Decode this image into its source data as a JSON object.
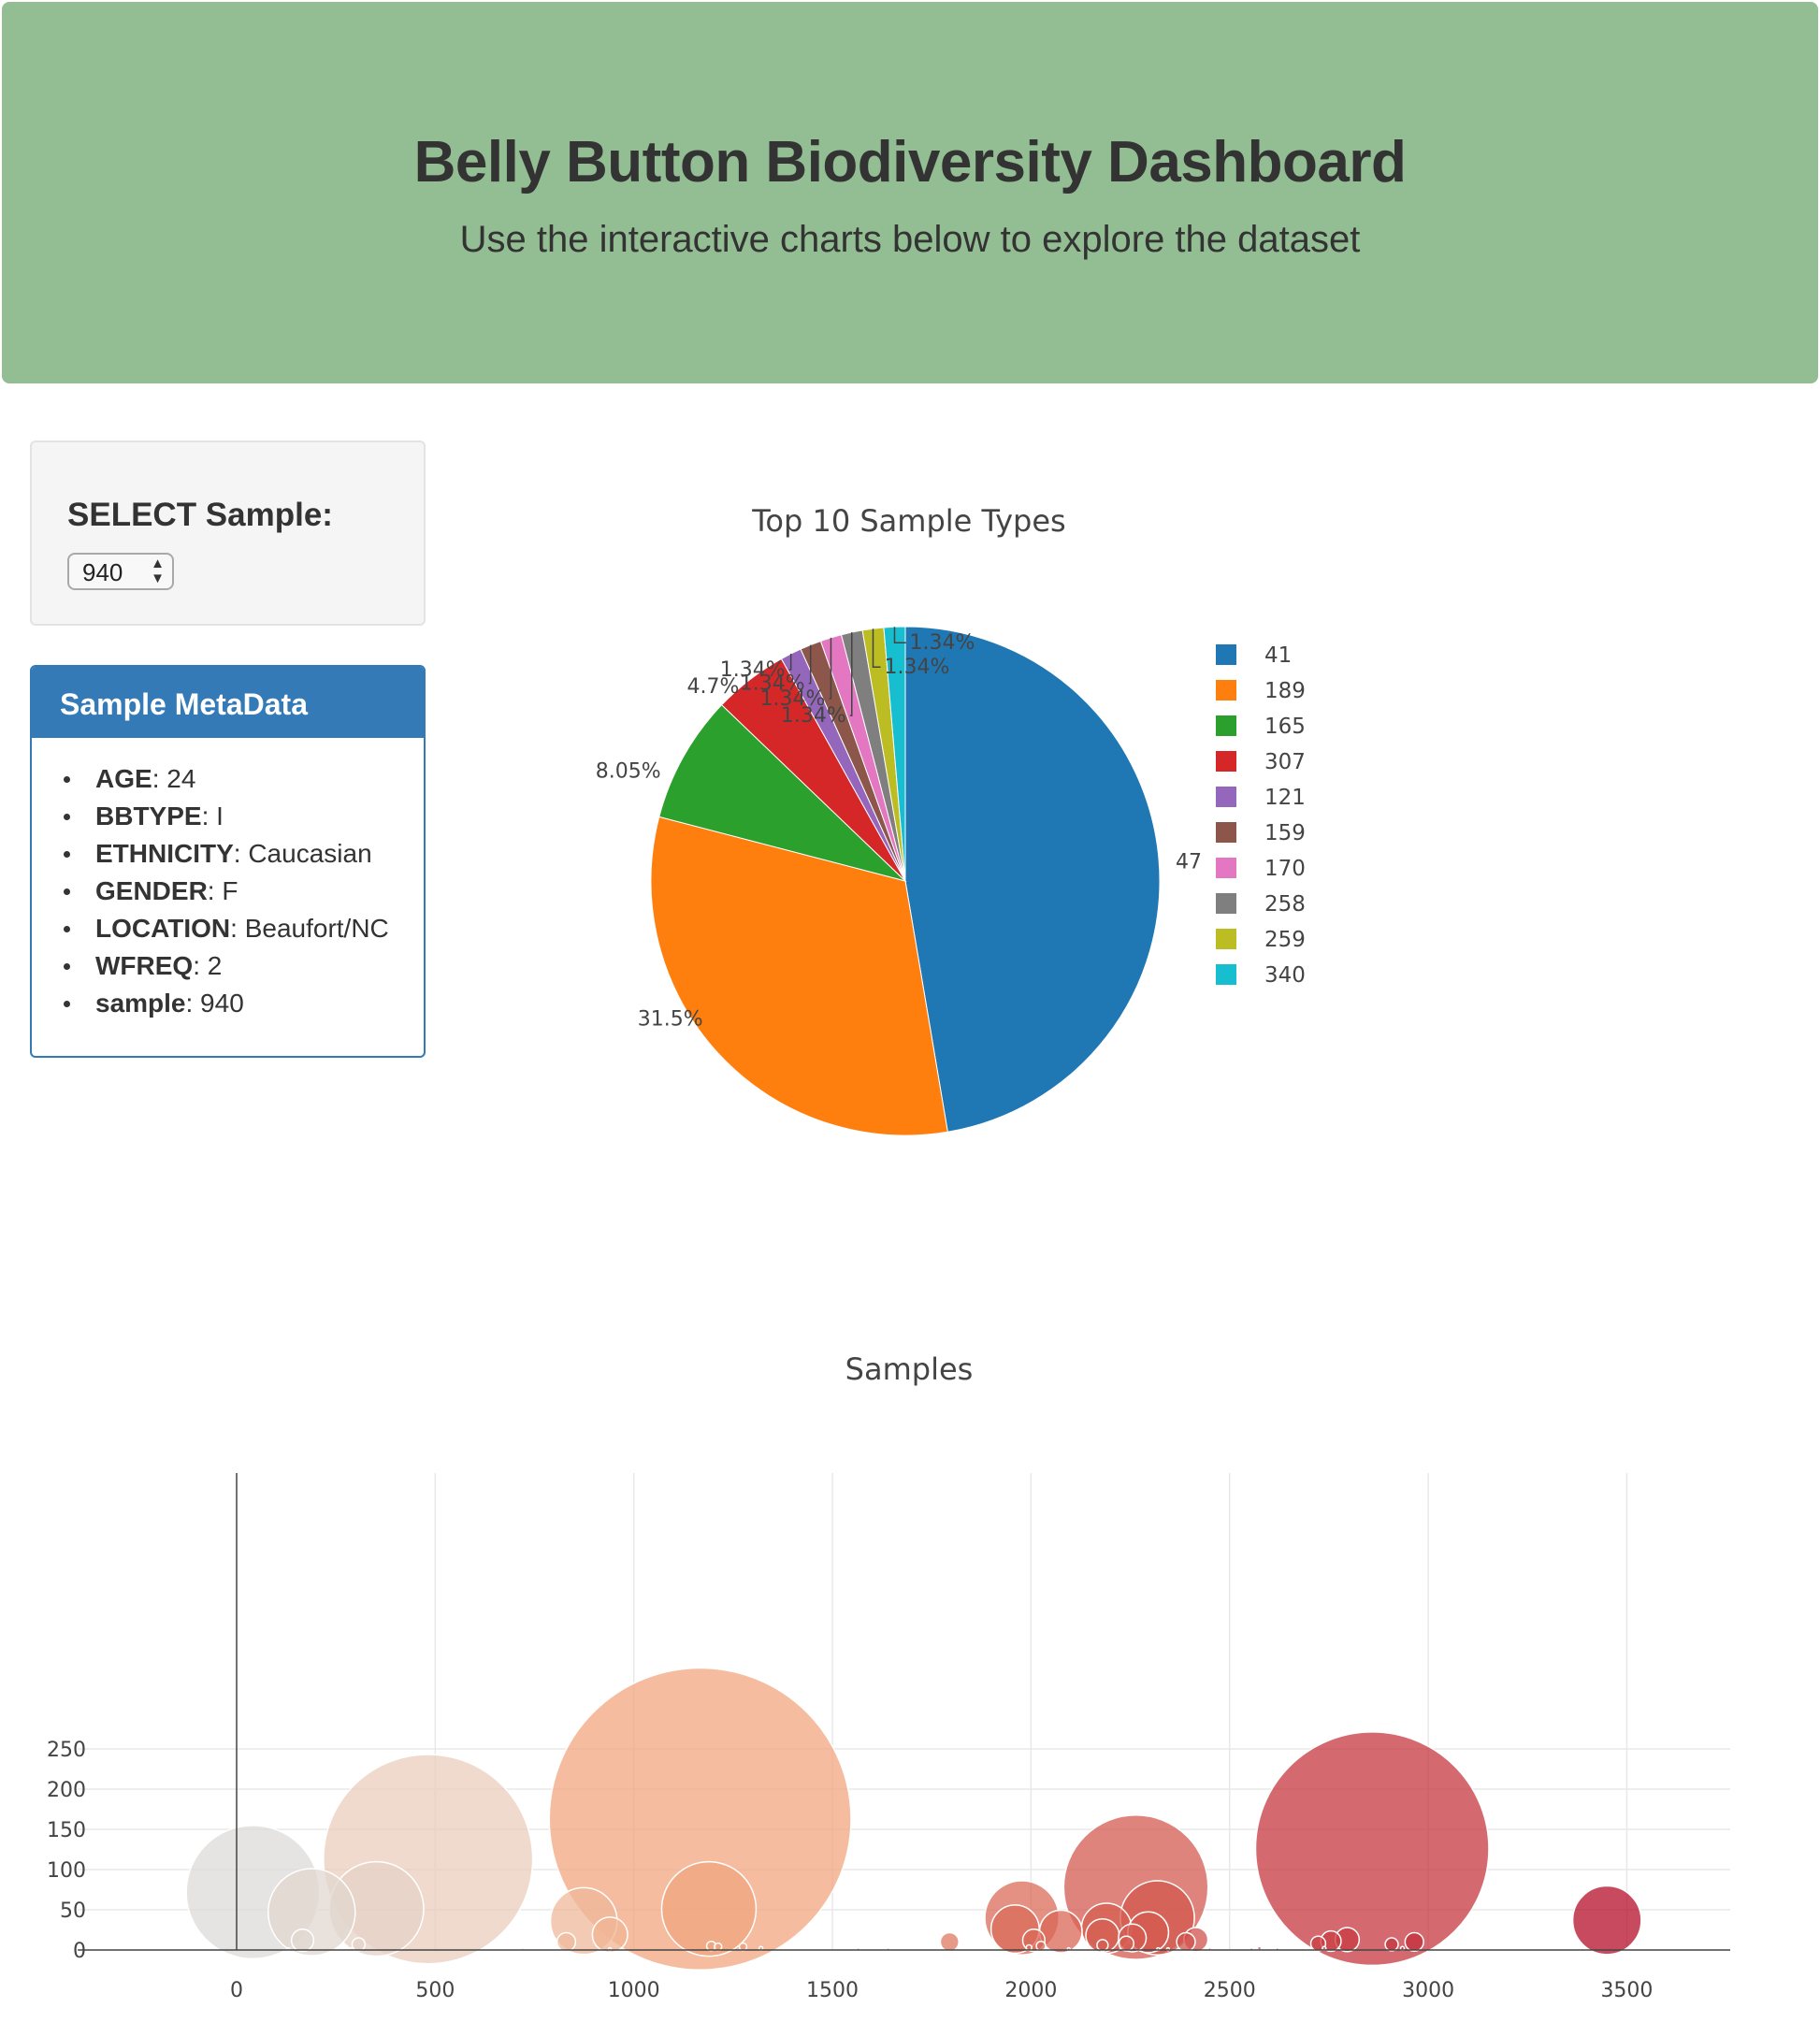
{
  "header": {
    "title": "Belly Button Biodiversity Dashboard",
    "subtitle": "Use the interactive charts below to explore the dataset"
  },
  "selector": {
    "label": "SELECT Sample:",
    "selected": "940"
  },
  "metadata": {
    "title": "Sample MetaData",
    "items": [
      {
        "key": "AGE",
        "value": ": 24"
      },
      {
        "key": "BBTYPE",
        "value": ": I"
      },
      {
        "key": "ETHNICITY",
        "value": ": Caucasian"
      },
      {
        "key": "GENDER",
        "value": ": F"
      },
      {
        "key": "LOCATION",
        "value": ": Beaufort/NC"
      },
      {
        "key": "WFREQ",
        "value": ": 2"
      },
      {
        "key": "sample",
        "value": ": 940"
      }
    ]
  },
  "chart_data": [
    {
      "type": "pie",
      "title": "Top 10 Sample Types",
      "labels": [
        "41",
        "189",
        "165",
        "307",
        "121",
        "159",
        "170",
        "258",
        "259",
        "340"
      ],
      "values": [
        47,
        31.5,
        8.05,
        4.7,
        1.34,
        1.34,
        1.34,
        1.34,
        1.34,
        1.34
      ],
      "text_labels": [
        "47",
        "31.5%",
        "8.05%",
        "4.7%",
        "1.34%",
        "1.34%",
        "1.34%",
        "1.34%",
        "1.34%",
        "1.34%"
      ],
      "colors": [
        "#1f77b4",
        "#ff7f0e",
        "#2ca02c",
        "#d62728",
        "#9467bd",
        "#8c564b",
        "#e377c2",
        "#7f7f7f",
        "#bcbd22",
        "#17becf"
      ],
      "legend_position": "right"
    },
    {
      "type": "scatter",
      "subtype": "bubble",
      "title": "Samples",
      "xlim": [
        -400,
        3800
      ],
      "ylim": [
        -8,
        295
      ],
      "xticks": [
        0,
        500,
        1000,
        1500,
        2000,
        2500,
        3000,
        3500
      ],
      "yticks": [
        0,
        50,
        100,
        150,
        200,
        250
      ],
      "grid": true,
      "colorscale": "lightgray to orange to dark red by x",
      "points": [
        {
          "x": 1167,
          "y": 163
        },
        {
          "x": 2859,
          "y": 126
        },
        {
          "x": 482,
          "y": 113
        },
        {
          "x": 2264,
          "y": 78
        },
        {
          "x": 41,
          "y": 72
        },
        {
          "x": 189,
          "y": 47
        },
        {
          "x": 352,
          "y": 51
        },
        {
          "x": 1189,
          "y": 51
        },
        {
          "x": 1977,
          "y": 40
        },
        {
          "x": 2318,
          "y": 40
        },
        {
          "x": 3450,
          "y": 37
        },
        {
          "x": 874,
          "y": 36
        },
        {
          "x": 1960,
          "y": 26
        },
        {
          "x": 2190,
          "y": 27
        },
        {
          "x": 2075,
          "y": 23
        },
        {
          "x": 2180,
          "y": 18
        },
        {
          "x": 2295,
          "y": 22
        },
        {
          "x": 940,
          "y": 19
        },
        {
          "x": 2255,
          "y": 15
        },
        {
          "x": 2007,
          "y": 12
        },
        {
          "x": 2415,
          "y": 13
        },
        {
          "x": 2796,
          "y": 13
        },
        {
          "x": 2755,
          "y": 11
        },
        {
          "x": 2390,
          "y": 10
        },
        {
          "x": 1795,
          "y": 10
        },
        {
          "x": 166,
          "y": 12
        },
        {
          "x": 830,
          "y": 10
        },
        {
          "x": 2965,
          "y": 10
        },
        {
          "x": 2240,
          "y": 8
        },
        {
          "x": 307,
          "y": 7
        },
        {
          "x": 2723,
          "y": 8
        },
        {
          "x": 2908,
          "y": 7
        },
        {
          "x": 2180,
          "y": 6
        },
        {
          "x": 1195,
          "y": 5
        },
        {
          "x": 2025,
          "y": 5
        },
        {
          "x": 1275,
          "y": 4
        },
        {
          "x": 1212,
          "y": 4
        },
        {
          "x": 1995,
          "y": 3
        },
        {
          "x": 2738,
          "y": 2
        },
        {
          "x": 2935,
          "y": 2
        },
        {
          "x": 2575,
          "y": 2
        },
        {
          "x": 1320,
          "y": 2
        },
        {
          "x": 1565,
          "y": 1
        },
        {
          "x": 2555,
          "y": 1
        },
        {
          "x": 2620,
          "y": 1
        },
        {
          "x": 2320,
          "y": 1
        },
        {
          "x": 2345,
          "y": 1
        },
        {
          "x": 290,
          "y": 1
        },
        {
          "x": 130,
          "y": 1
        },
        {
          "x": 940,
          "y": 1
        },
        {
          "x": 1640,
          "y": 1
        },
        {
          "x": 720,
          "y": 1
        },
        {
          "x": 2450,
          "y": 1
        },
        {
          "x": 2095,
          "y": 1
        }
      ]
    }
  ]
}
